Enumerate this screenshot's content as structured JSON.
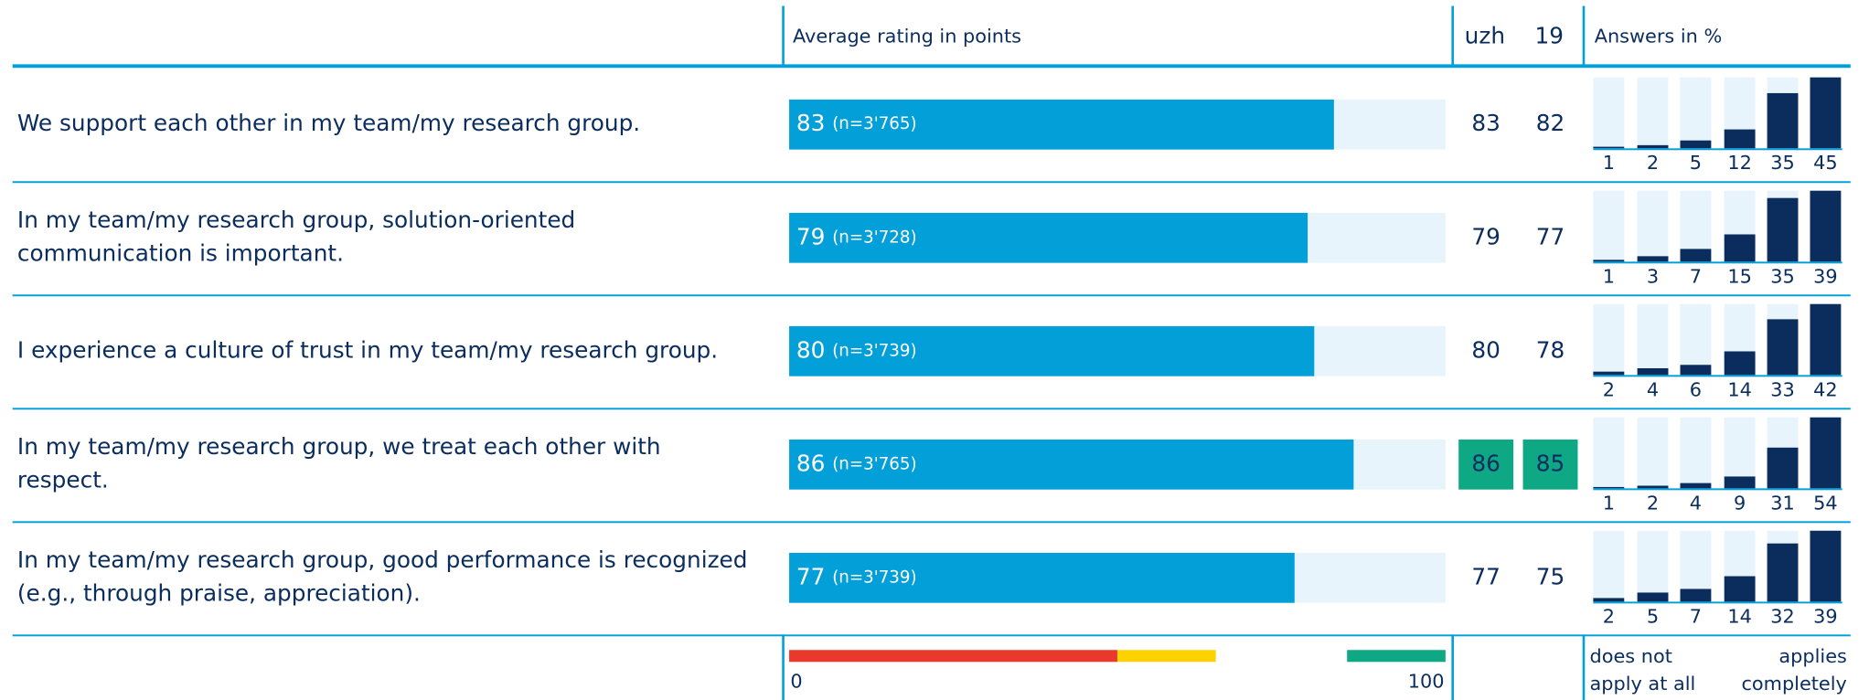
{
  "header": {
    "rating": "Average rating in points",
    "uzh": "uzh",
    "y19": "19",
    "answers": "Answers in %"
  },
  "scale": {
    "min_label": "0",
    "max_label": "100",
    "min": 0,
    "max": 100,
    "bands": [
      {
        "from": 0,
        "to": 50,
        "color": "#e8392a"
      },
      {
        "from": 50,
        "to": 65,
        "color": "#fdd200"
      },
      {
        "from": 85,
        "to": 100,
        "color": "#0ea884"
      }
    ]
  },
  "answers_legend": {
    "left": [
      "does not",
      "apply at all"
    ],
    "right": [
      "applies",
      "completely"
    ]
  },
  "highlight_color": "#0ea884",
  "rows": [
    {
      "question": [
        "We support each other in my team/my research group."
      ],
      "rating": 83,
      "n": "(n=3'765)",
      "uzh": 83,
      "y19": 82,
      "highlight": false,
      "answers": [
        1,
        2,
        5,
        12,
        35,
        45
      ]
    },
    {
      "question": [
        "In my team/my research group, solution-oriented",
        "communication is important."
      ],
      "rating": 79,
      "n": "(n=3'728)",
      "uzh": 79,
      "y19": 77,
      "highlight": false,
      "answers": [
        1,
        3,
        7,
        15,
        35,
        39
      ]
    },
    {
      "question": [
        "I experience a culture of trust in my team/my research group."
      ],
      "rating": 80,
      "n": "(n=3'739)",
      "uzh": 80,
      "y19": 78,
      "highlight": false,
      "answers": [
        2,
        4,
        6,
        14,
        33,
        42
      ]
    },
    {
      "question": [
        "In my team/my research group, we treat each other with",
        "respect."
      ],
      "rating": 86,
      "n": "(n=3'765)",
      "uzh": 86,
      "y19": 85,
      "highlight": true,
      "answers": [
        1,
        2,
        4,
        9,
        31,
        54
      ]
    },
    {
      "question": [
        "In my team/my research group, good performance is recognized",
        "(e.g., through praise, appreciation)."
      ],
      "rating": 77,
      "n": "(n=3'739)",
      "uzh": 77,
      "y19": 75,
      "highlight": false,
      "answers": [
        2,
        5,
        7,
        14,
        32,
        39
      ]
    }
  ]
}
